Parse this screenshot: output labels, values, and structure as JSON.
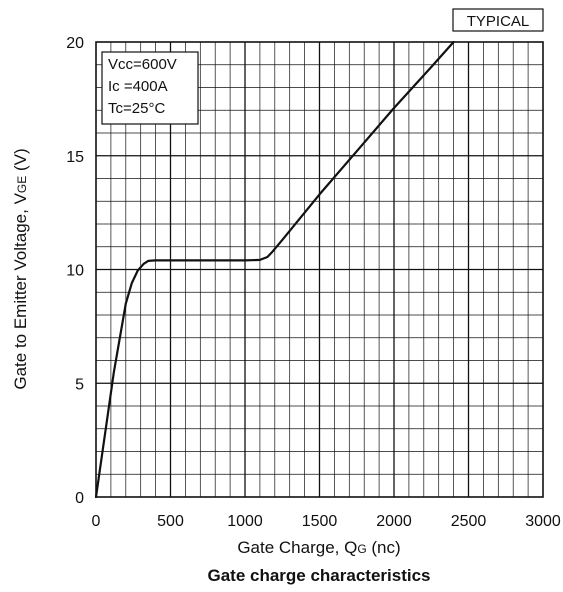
{
  "chart_data": {
    "type": "line",
    "title": "Gate charge characteristics",
    "xlabel": "Gate Charge, QG (nc)",
    "ylabel": "Gate to Emitter Voltage, VGE (V)",
    "xlabel_parts": {
      "main": "Gate Charge, Q",
      "sub": "G",
      "unit": " (nc)"
    },
    "ylabel_parts": {
      "main": "Gate to Emitter Voltage, V",
      "sub": "GE",
      "unit": " (V)"
    },
    "xlim": [
      0,
      3000
    ],
    "ylim": [
      0,
      20
    ],
    "xticks": [
      "0",
      "500",
      "1000",
      "1500",
      "2000",
      "2500",
      "3000"
    ],
    "yticks": [
      "0",
      "5",
      "10",
      "15",
      "20"
    ],
    "grid": true,
    "badge": "TYPICAL",
    "conditions": [
      "Vcc=600V",
      "Ic =400A",
      "Tc=25°C"
    ],
    "series": [
      {
        "x": [
          0,
          120,
          200,
          240,
          280,
          320,
          350,
          400,
          600,
          800,
          1000,
          1100,
          1150,
          1180,
          1250,
          1500,
          1750,
          2000,
          2250,
          2400
        ],
        "y": [
          0,
          5.5,
          8.5,
          9.4,
          9.95,
          10.25,
          10.38,
          10.4,
          10.4,
          10.4,
          10.4,
          10.42,
          10.55,
          10.75,
          11.3,
          13.3,
          15.2,
          17.1,
          18.9,
          20
        ]
      }
    ],
    "colors": {
      "line": "#111111",
      "grid": "#111111",
      "background": "#ffffff"
    }
  }
}
